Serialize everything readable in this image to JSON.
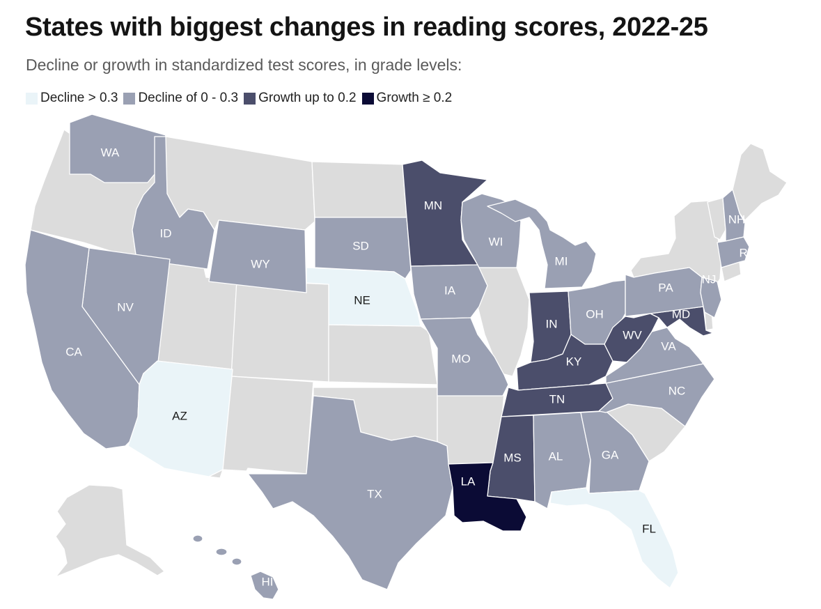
{
  "title": "States with biggest changes in reading scores, 2022-25",
  "subtitle": "Decline or growth in standardized test scores, in grade levels:",
  "legend": [
    {
      "label": "Decline > 0.3",
      "color": "#eaf4f8"
    },
    {
      "label": "Decline of 0 - 0.3",
      "color": "#9aa0b3"
    },
    {
      "label": "Growth up to 0.2",
      "color": "#4b4e6b"
    },
    {
      "label": "Growth ≥ 0.2",
      "color": "#0b0b35"
    }
  ],
  "nodata_color": "#dcdcdc",
  "states": {
    "WA": {
      "label": "WA",
      "category": "Decline of 0 - 0.3"
    },
    "ID": {
      "label": "ID",
      "category": "Decline of 0 - 0.3"
    },
    "WY": {
      "label": "WY",
      "category": "Decline of 0 - 0.3"
    },
    "SD": {
      "label": "SD",
      "category": "Decline of 0 - 0.3"
    },
    "NE": {
      "label": "NE",
      "category": "Decline > 0.3"
    },
    "NV": {
      "label": "NV",
      "category": "Decline of 0 - 0.3"
    },
    "CA": {
      "label": "CA",
      "category": "Decline of 0 - 0.3"
    },
    "AZ": {
      "label": "AZ",
      "category": "Decline > 0.3"
    },
    "TX": {
      "label": "TX",
      "category": "Decline of 0 - 0.3"
    },
    "MN": {
      "label": "MN",
      "category": "Growth up to 0.2"
    },
    "IA": {
      "label": "IA",
      "category": "Decline of 0 - 0.3"
    },
    "MO": {
      "label": "MO",
      "category": "Decline of 0 - 0.3"
    },
    "WI": {
      "label": "WI",
      "category": "Decline of 0 - 0.3"
    },
    "MI": {
      "label": "MI",
      "category": "Decline of 0 - 0.3"
    },
    "IN": {
      "label": "IN",
      "category": "Growth up to 0.2"
    },
    "OH": {
      "label": "OH",
      "category": "Decline of 0 - 0.3"
    },
    "KY": {
      "label": "KY",
      "category": "Growth up to 0.2"
    },
    "TN": {
      "label": "TN",
      "category": "Growth up to 0.2"
    },
    "MS": {
      "label": "MS",
      "category": "Growth up to 0.2"
    },
    "LA": {
      "label": "LA",
      "category": "Growth ≥ 0.2"
    },
    "AL": {
      "label": "AL",
      "category": "Decline of 0 - 0.3"
    },
    "GA": {
      "label": "GA",
      "category": "Decline of 0 - 0.3"
    },
    "FL": {
      "label": "FL",
      "category": "Decline > 0.3"
    },
    "NC": {
      "label": "NC",
      "category": "Decline of 0 - 0.3"
    },
    "VA": {
      "label": "VA",
      "category": "Decline of 0 - 0.3"
    },
    "WV": {
      "label": "WV",
      "category": "Growth up to 0.2"
    },
    "MD": {
      "label": "MD",
      "category": "Growth up to 0.2"
    },
    "PA": {
      "label": "PA",
      "category": "Decline of 0 - 0.3"
    },
    "NJ": {
      "label": "NJ",
      "category": "Decline of 0 - 0.3"
    },
    "NH": {
      "label": "NH",
      "category": "Decline of 0 - 0.3"
    },
    "RI": {
      "label": "RI",
      "category": "Decline of 0 - 0.3"
    },
    "HI": {
      "label": "HI",
      "category": "Decline of 0 - 0.3"
    }
  }
}
